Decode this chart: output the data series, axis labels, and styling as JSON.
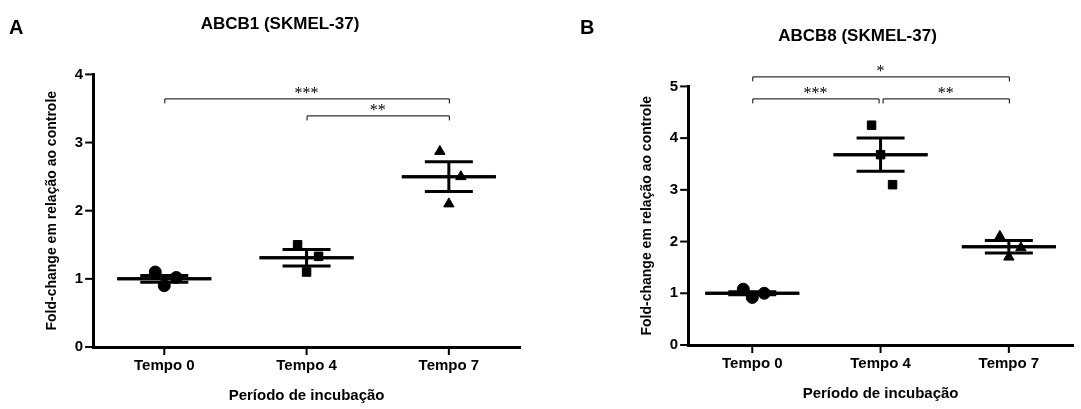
{
  "chart_data": [
    {
      "type": "scatter",
      "title": "ABCB1 (SKMEL-37)",
      "xlabel": "Período de incubação",
      "ylabel": "Fold-change em relação ao controle",
      "categories": [
        "Tempo 0",
        "Tempo 4",
        "Tempo 7"
      ],
      "ylim": [
        0,
        4
      ],
      "yticks": [
        0,
        1,
        2,
        3,
        4
      ],
      "legend": false,
      "annotations": [
        "A",
        "***",
        "**"
      ],
      "series": [
        {
          "type": "scatter",
          "marker": "circle",
          "color": "#000000",
          "x": [
            "Tempo 0",
            "Tempo 0",
            "Tempo 0"
          ],
          "values": [
            1.1,
            0.9,
            1.02
          ]
        },
        {
          "type": "scatter",
          "marker": "square",
          "color": "#000000",
          "x": [
            "Tempo 4",
            "Tempo 4",
            "Tempo 4"
          ],
          "values": [
            1.5,
            1.1,
            1.33
          ]
        },
        {
          "type": "scatter",
          "marker": "triangle",
          "color": "#000000",
          "x": [
            "Tempo 7",
            "Tempo 7",
            "Tempo 7"
          ],
          "values": [
            2.87,
            2.1,
            2.5
          ]
        },
        {
          "type": "box",
          "color": "#000000",
          "boxes": [
            {
              "low": 0.95,
              "q1": 1.0,
              "median": 1.0,
              "q3": 1.0,
              "high": 1.05
            },
            {
              "low": 1.19,
              "q1": 1.31,
              "median": 1.31,
              "q3": 1.31,
              "high": 1.43
            },
            {
              "low": 2.28,
              "q1": 2.5,
              "median": 2.5,
              "q3": 2.5,
              "high": 2.72
            }
          ]
        }
      ]
    },
    {
      "type": "scatter",
      "title": "ABCB8 (SKMEL-37)",
      "xlabel": "Período de incubação",
      "ylabel": "Fold-change em relação ao controle",
      "categories": [
        "Tempo 0",
        "Tempo 4",
        "Tempo 7"
      ],
      "ylim": [
        0,
        5
      ],
      "yticks": [
        0,
        1,
        2,
        3,
        4,
        5
      ],
      "legend": false,
      "annotations": [
        "B",
        "*",
        "***",
        "**"
      ],
      "series": [
        {
          "type": "scatter",
          "marker": "circle",
          "color": "#000000",
          "x": [
            "Tempo 0",
            "Tempo 0",
            "Tempo 0"
          ],
          "values": [
            1.08,
            0.92,
            1.0
          ]
        },
        {
          "type": "scatter",
          "marker": "square",
          "color": "#000000",
          "x": [
            "Tempo 4",
            "Tempo 4",
            "Tempo 4"
          ],
          "values": [
            4.25,
            3.68,
            3.1
          ]
        },
        {
          "type": "scatter",
          "marker": "triangle",
          "color": "#000000",
          "x": [
            "Tempo 7",
            "Tempo 7",
            "Tempo 7"
          ],
          "values": [
            2.1,
            1.7,
            1.88
          ]
        },
        {
          "type": "box",
          "color": "#000000",
          "boxes": [
            {
              "low": 0.97,
              "q1": 1.0,
              "median": 1.0,
              "q3": 1.0,
              "high": 1.03
            },
            {
              "low": 3.36,
              "q1": 3.68,
              "median": 3.68,
              "q3": 3.68,
              "high": 4.0
            },
            {
              "low": 1.78,
              "q1": 1.9,
              "median": 1.9,
              "q3": 1.9,
              "high": 2.02
            }
          ]
        }
      ]
    }
  ]
}
